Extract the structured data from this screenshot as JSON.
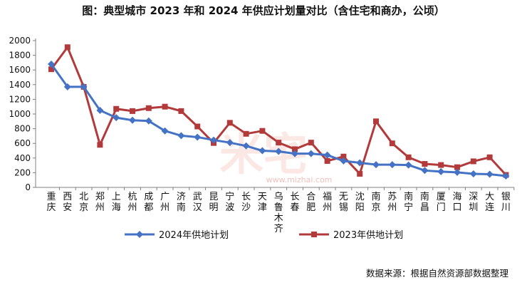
{
  "chart_data": {
    "type": "line",
    "title": "图：典型城市 2023 年和 2024 年供应计划量对比（含住宅和商办，公顷）",
    "source": "数据来源：根据自然资源部数据整理",
    "watermark": "www.mizhai.com",
    "ylim": [
      0,
      2000
    ],
    "yticks": [
      0,
      200,
      400,
      600,
      800,
      1000,
      1200,
      1400,
      1600,
      1800,
      2000
    ],
    "grid": false,
    "legend_position": "bottom",
    "categories": [
      "重庆",
      "西安",
      "北京",
      "郑州",
      "上海",
      "杭州",
      "成都",
      "广州",
      "济南",
      "武汉",
      "昆明",
      "宁波",
      "长沙",
      "天津",
      "乌鲁木齐",
      "长春",
      "合肥",
      "福州",
      "无锡",
      "沈阳",
      "南京",
      "苏州",
      "南宁",
      "南昌",
      "厦门",
      "海口",
      "深圳",
      "大连",
      "银川"
    ],
    "series": [
      {
        "name": "2024年供地计划",
        "color": "#4472C4",
        "marker": "diamond",
        "values": [
          1680,
          1370,
          1370,
          1050,
          950,
          915,
          905,
          770,
          705,
          685,
          645,
          610,
          565,
          500,
          490,
          460,
          460,
          440,
          360,
          335,
          310,
          310,
          305,
          230,
          215,
          205,
          185,
          180,
          155
        ]
      },
      {
        "name": "2023年供地计划",
        "color": "#B23A3A",
        "marker": "square",
        "values": [
          1610,
          1910,
          1370,
          580,
          1070,
          1040,
          1080,
          1100,
          1040,
          830,
          605,
          880,
          730,
          770,
          610,
          520,
          610,
          360,
          420,
          185,
          900,
          600,
          410,
          320,
          305,
          275,
          355,
          410,
          170
        ]
      }
    ]
  }
}
